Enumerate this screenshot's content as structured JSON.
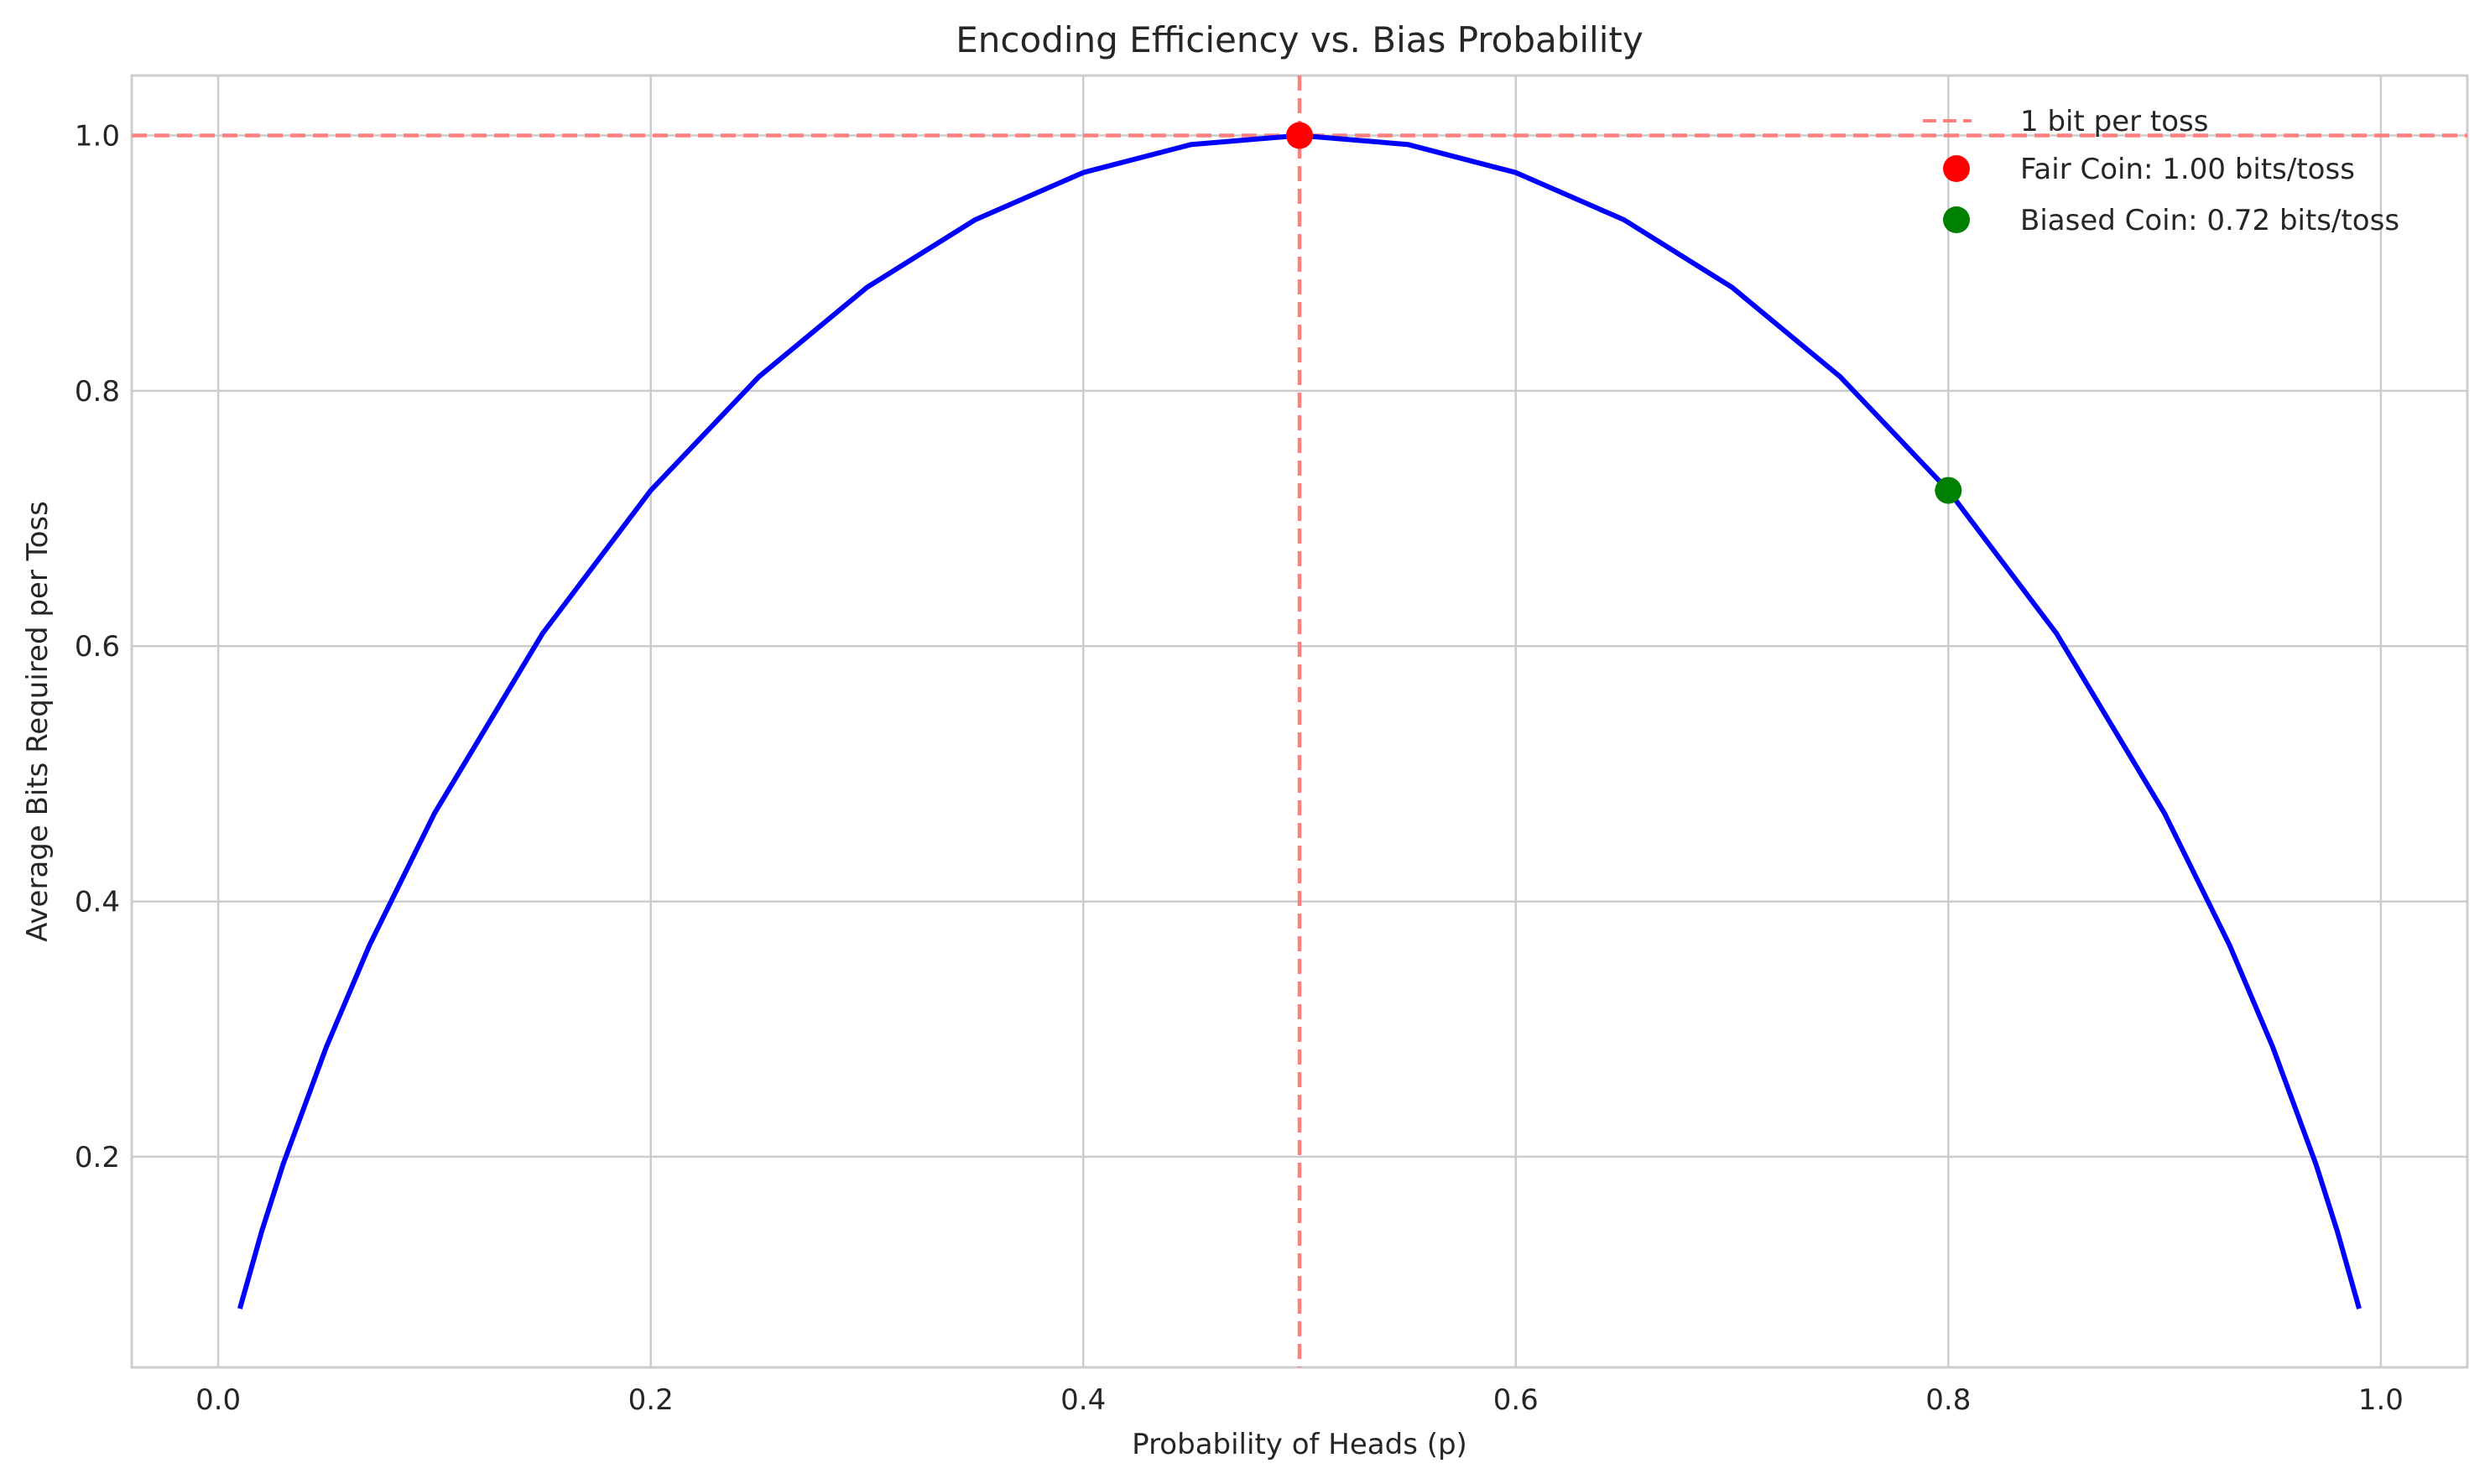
{
  "chart_data": {
    "type": "line",
    "title": "Encoding Efficiency vs. Bias Probability",
    "xlabel": "Probability of Heads (p)",
    "ylabel": "Average Bits Required per Toss",
    "xlim": [
      -0.04,
      1.04
    ],
    "ylim": [
      0.035,
      1.047
    ],
    "xticks": [
      0.0,
      0.2,
      0.4,
      0.6,
      0.8,
      1.0
    ],
    "xtick_labels": [
      "0.0",
      "0.2",
      "0.4",
      "0.6",
      "0.8",
      "1.0"
    ],
    "yticks": [
      0.2,
      0.4,
      0.6,
      0.8,
      1.0
    ],
    "ytick_labels": [
      "0.2",
      "0.4",
      "0.6",
      "0.8",
      "1.0"
    ],
    "grid": true,
    "legend_position": "top-right",
    "series": [
      {
        "kind": "line",
        "color": "#0000ff",
        "x": [
          0.01,
          0.02,
          0.03,
          0.05,
          0.07,
          0.1,
          0.15,
          0.2,
          0.25,
          0.3,
          0.35,
          0.4,
          0.45,
          0.5,
          0.55,
          0.6,
          0.65,
          0.7,
          0.75,
          0.8,
          0.85,
          0.9,
          0.93,
          0.95,
          0.97,
          0.98,
          0.99
        ],
        "y": [
          0.081,
          0.141,
          0.194,
          0.286,
          0.366,
          0.469,
          0.61,
          0.722,
          0.811,
          0.881,
          0.934,
          0.971,
          0.993,
          1.0,
          0.993,
          0.971,
          0.934,
          0.881,
          0.811,
          0.722,
          0.61,
          0.469,
          0.366,
          0.286,
          0.194,
          0.141,
          0.081
        ]
      }
    ],
    "reference_lines": [
      {
        "orientation": "horizontal",
        "value": 1.0,
        "color": "#ff7f7f",
        "style": "dashed",
        "legend": "1 bit per toss"
      },
      {
        "orientation": "vertical",
        "value": 0.5,
        "color": "#ff7f7f",
        "style": "dashed"
      }
    ],
    "points": [
      {
        "name": "Fair Coin: 1.00 bits/toss",
        "x": 0.5,
        "y": 1.0,
        "color": "#ff0000"
      },
      {
        "name": "Biased Coin: 0.72 bits/toss",
        "x": 0.8,
        "y": 0.722,
        "color": "#008000"
      }
    ]
  }
}
